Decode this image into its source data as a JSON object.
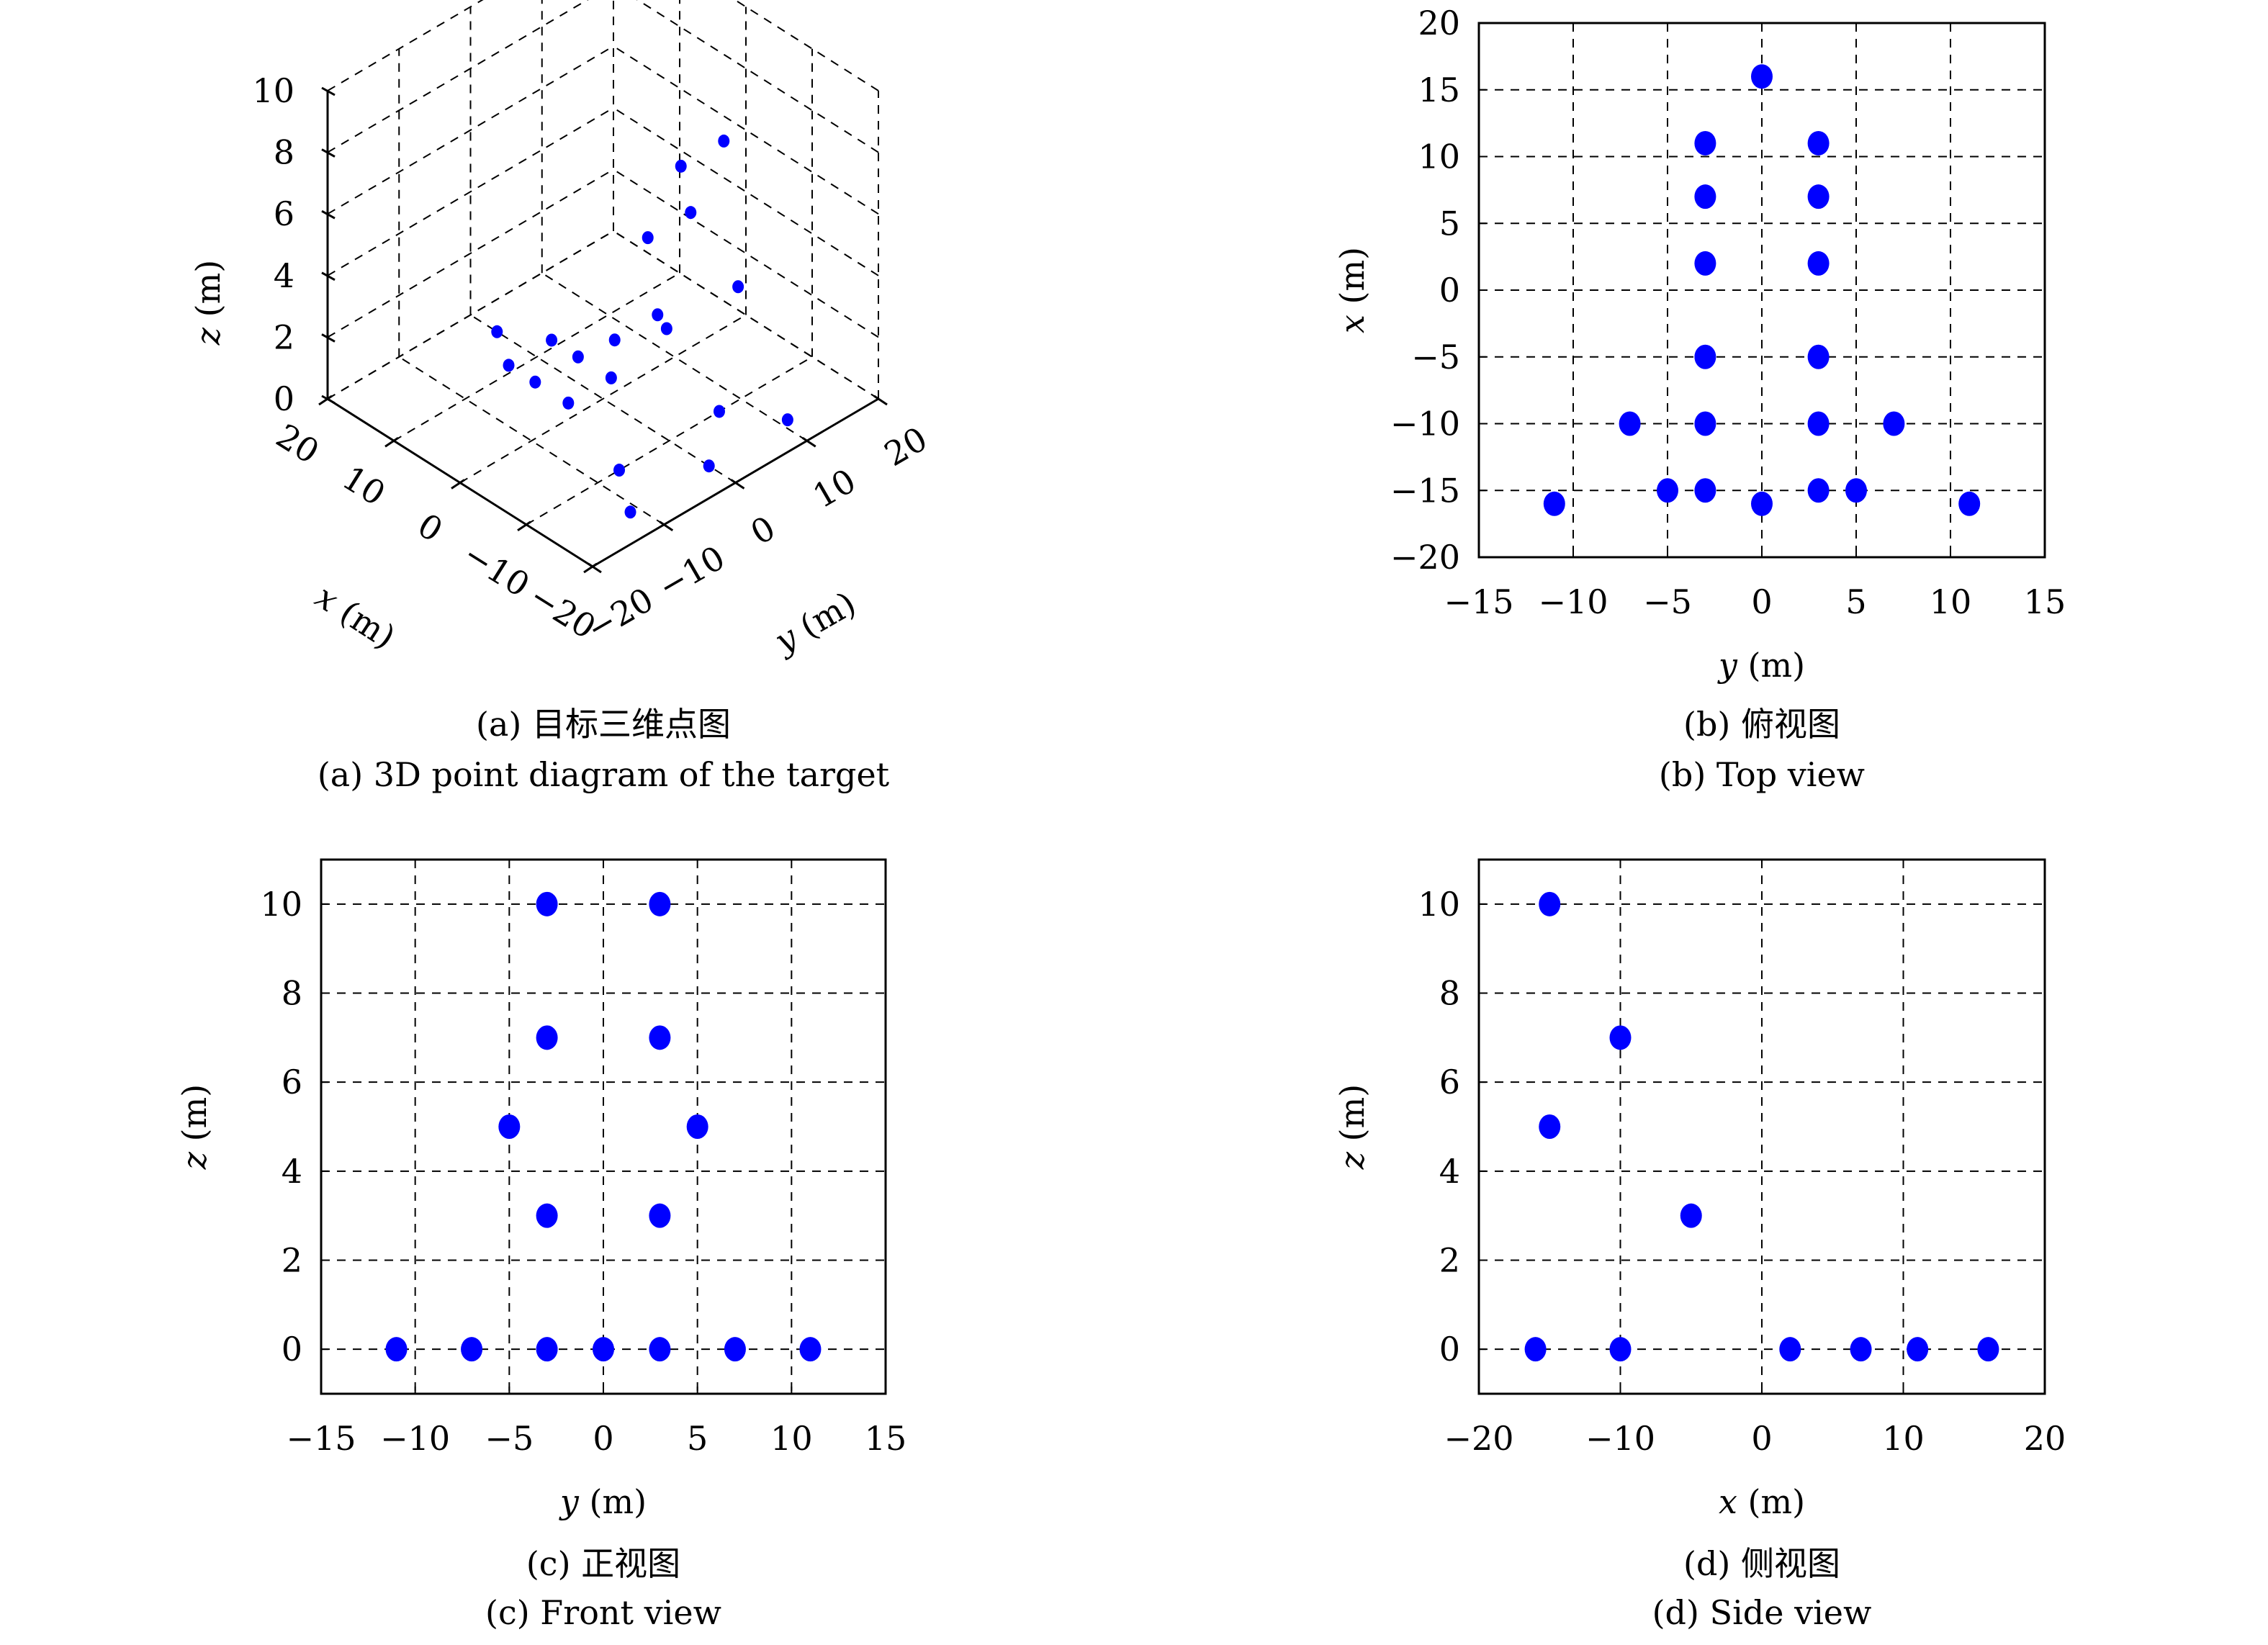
{
  "colors": {
    "point": "#0000ff",
    "axis": "#000000",
    "grid": "#000000",
    "background": "#ffffff"
  },
  "chart_data": [
    {
      "id": "a",
      "type": "scatter3d",
      "caption_cn": "(a) 目标三维点图",
      "caption_en": "(a) 3D point diagram of the target",
      "xlabel": "x (m)",
      "ylabel": "y (m)",
      "zlabel": "z (m)",
      "xlim": [
        -20,
        20
      ],
      "ylim": [
        -20,
        20
      ],
      "zlim": [
        0,
        10
      ],
      "xticks": [
        20,
        10,
        0,
        -10,
        -20
      ],
      "yticks": [
        -20,
        -10,
        0,
        10,
        20
      ],
      "zticks": [
        0,
        2,
        4,
        6,
        8,
        10
      ],
      "grid": true,
      "points": [
        {
          "x": 16,
          "y": 0,
          "z": 0
        },
        {
          "x": 11,
          "y": -3,
          "z": 0
        },
        {
          "x": 11,
          "y": 3,
          "z": 0
        },
        {
          "x": 7,
          "y": -3,
          "z": 0
        },
        {
          "x": 7,
          "y": 3,
          "z": 0
        },
        {
          "x": 2,
          "y": -3,
          "z": 0
        },
        {
          "x": 2,
          "y": 3,
          "z": 0
        },
        {
          "x": -10,
          "y": -7,
          "z": 0
        },
        {
          "x": -10,
          "y": 7,
          "z": 0
        },
        {
          "x": -16,
          "y": -11,
          "z": 0
        },
        {
          "x": -16,
          "y": 0,
          "z": 0
        },
        {
          "x": -16,
          "y": 11,
          "z": 0
        },
        {
          "x": -5,
          "y": -3,
          "z": 3
        },
        {
          "x": -5,
          "y": 3,
          "z": 3
        },
        {
          "x": -15,
          "y": -5,
          "z": 5
        },
        {
          "x": -15,
          "y": 5,
          "z": 5
        },
        {
          "x": -10,
          "y": -3,
          "z": 7
        },
        {
          "x": -10,
          "y": 3,
          "z": 7
        },
        {
          "x": -15,
          "y": -3,
          "z": 10
        },
        {
          "x": -15,
          "y": 3,
          "z": 10
        }
      ]
    },
    {
      "id": "b",
      "type": "scatter",
      "caption_cn": "(b) 俯视图",
      "caption_en": "(b) Top view",
      "xlabel": "y (m)",
      "ylabel": "x (m)",
      "xlim": [
        -15,
        15
      ],
      "ylim": [
        -20,
        20
      ],
      "xticks": [
        -15,
        -10,
        -5,
        0,
        5,
        10,
        15
      ],
      "yticks": [
        -20,
        -15,
        -10,
        -5,
        0,
        5,
        10,
        15,
        20
      ],
      "grid": true,
      "points": [
        {
          "x": 0,
          "y": 16
        },
        {
          "x": -3,
          "y": 11
        },
        {
          "x": 3,
          "y": 11
        },
        {
          "x": -3,
          "y": 7
        },
        {
          "x": 3,
          "y": 7
        },
        {
          "x": -3,
          "y": 2
        },
        {
          "x": 3,
          "y": 2
        },
        {
          "x": -3,
          "y": -5
        },
        {
          "x": 3,
          "y": -5
        },
        {
          "x": -7,
          "y": -10
        },
        {
          "x": -3,
          "y": -10
        },
        {
          "x": 3,
          "y": -10
        },
        {
          "x": 7,
          "y": -10
        },
        {
          "x": -11,
          "y": -16
        },
        {
          "x": -5,
          "y": -15
        },
        {
          "x": -3,
          "y": -15
        },
        {
          "x": 0,
          "y": -16
        },
        {
          "x": 3,
          "y": -15
        },
        {
          "x": 5,
          "y": -15
        },
        {
          "x": 11,
          "y": -16
        }
      ]
    },
    {
      "id": "c",
      "type": "scatter",
      "caption_cn": "(c) 正视图",
      "caption_en": "(c) Front view",
      "xlabel": "y (m)",
      "ylabel": "z (m)",
      "xlim": [
        -15,
        15
      ],
      "ylim": [
        -1,
        11
      ],
      "xticks": [
        -15,
        -10,
        -5,
        0,
        5,
        10,
        15
      ],
      "yticks": [
        0,
        2,
        4,
        6,
        8,
        10
      ],
      "grid": true,
      "points": [
        {
          "x": -11,
          "y": 0
        },
        {
          "x": -7,
          "y": 0
        },
        {
          "x": -3,
          "y": 0
        },
        {
          "x": 0,
          "y": 0
        },
        {
          "x": 3,
          "y": 0
        },
        {
          "x": 7,
          "y": 0
        },
        {
          "x": 11,
          "y": 0
        },
        {
          "x": -3,
          "y": 3
        },
        {
          "x": 3,
          "y": 3
        },
        {
          "x": -5,
          "y": 5
        },
        {
          "x": 5,
          "y": 5
        },
        {
          "x": -3,
          "y": 7
        },
        {
          "x": 3,
          "y": 7
        },
        {
          "x": -3,
          "y": 10
        },
        {
          "x": 3,
          "y": 10
        }
      ]
    },
    {
      "id": "d",
      "type": "scatter",
      "caption_cn": "(d) 侧视图",
      "caption_en": "(d) Side view",
      "xlabel": "x (m)",
      "ylabel": "z (m)",
      "xlim": [
        -20,
        20
      ],
      "ylim": [
        -1,
        11
      ],
      "xticks": [
        -20,
        -10,
        0,
        10,
        20
      ],
      "yticks": [
        0,
        2,
        4,
        6,
        8,
        10
      ],
      "grid": true,
      "points": [
        {
          "x": -16,
          "y": 0
        },
        {
          "x": -10,
          "y": 0
        },
        {
          "x": 2,
          "y": 0
        },
        {
          "x": 7,
          "y": 0
        },
        {
          "x": 11,
          "y": 0
        },
        {
          "x": 16,
          "y": 0
        },
        {
          "x": -5,
          "y": 3
        },
        {
          "x": -15,
          "y": 5
        },
        {
          "x": -10,
          "y": 7
        },
        {
          "x": -15,
          "y": 10
        }
      ]
    }
  ]
}
